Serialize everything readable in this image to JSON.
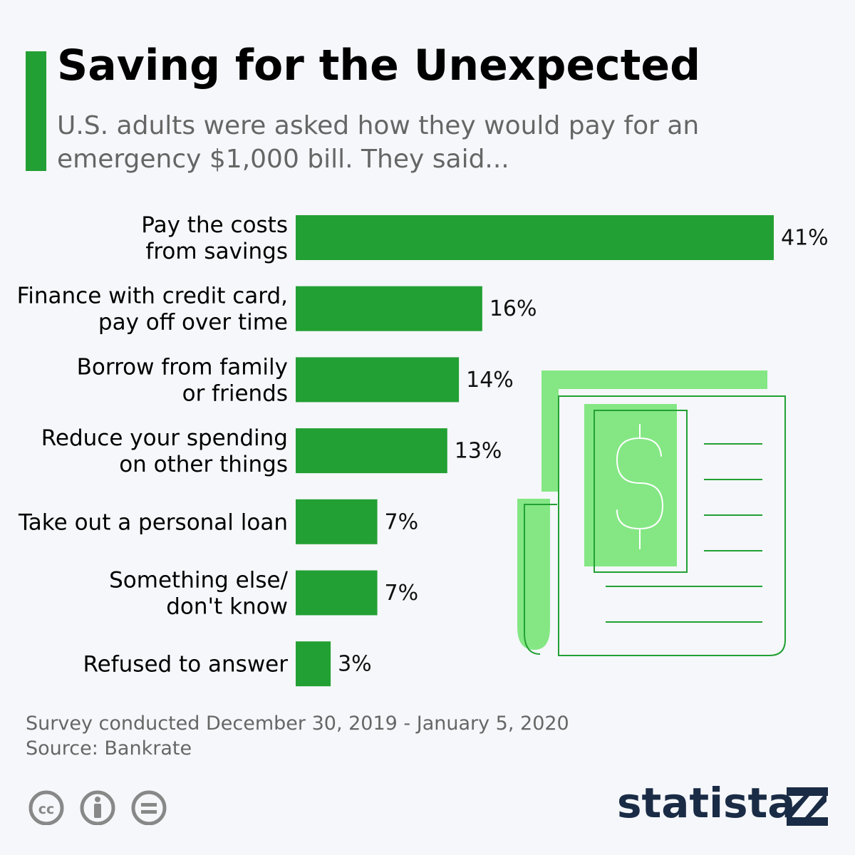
{
  "header": {
    "title": "Saving for the Unexpected",
    "subtitle": "U.S. adults were asked how they would pay for an emergency $1,000 bill. They said..."
  },
  "colors": {
    "accent": "#23a034",
    "bar": "#23a034",
    "illustration_light": "#84e784",
    "title": "#000000",
    "muted_text": "#666666",
    "brand": "#1a2b45"
  },
  "chart_data": {
    "type": "bar",
    "orientation": "horizontal",
    "categories": [
      [
        "Pay the costs",
        "from savings"
      ],
      [
        "Finance with credit card,",
        "pay off over time"
      ],
      [
        "Borrow from family",
        "or friends"
      ],
      [
        "Reduce your spending",
        "on other things"
      ],
      [
        "Take out a personal loan"
      ],
      [
        "Something else/",
        "don't know"
      ],
      [
        "Refused to answer"
      ]
    ],
    "values": [
      41,
      16,
      14,
      13,
      7,
      7,
      3
    ],
    "value_labels": [
      "41%",
      "16%",
      "14%",
      "13%",
      "7%",
      "7%",
      "3%"
    ],
    "unit": "%",
    "xlim": [
      0,
      41
    ],
    "grid": false,
    "legend": "none"
  },
  "footer": {
    "survey": "Survey conducted December 30, 2019 - January 5, 2020",
    "source": "Source: Bankrate"
  },
  "license_icons": [
    "creative-commons-icon",
    "attribution-icon",
    "no-derivatives-icon"
  ],
  "brand": {
    "name": "statista"
  }
}
